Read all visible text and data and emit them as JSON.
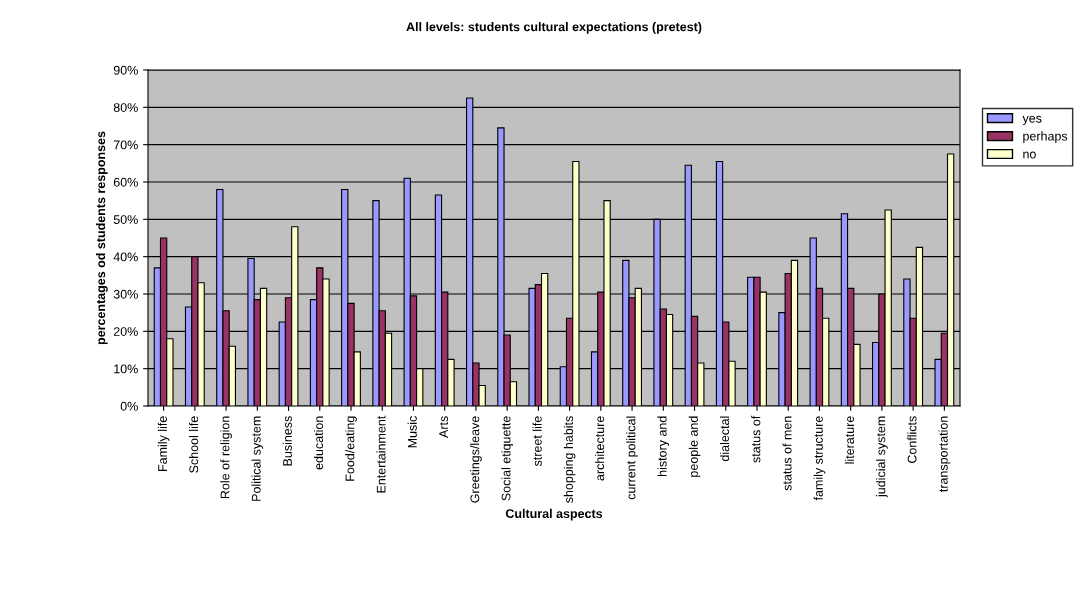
{
  "chart_data": {
    "type": "bar",
    "title": "All levels: students cultural expectations (pretest)",
    "xlabel": "Cultural aspects",
    "ylabel": "percentages od students responses",
    "categories": [
      "Family life",
      "School life",
      "Role of religion",
      "Political system",
      "Business",
      "education",
      "Food/eating",
      "Entertainment",
      "Music",
      "Arts",
      "Greetings/leave",
      "Social etiquette",
      "street life",
      "shopping habits",
      "architecture",
      "current political",
      "history and",
      "people and",
      "dialectal",
      "status of",
      "status of men",
      "family structure",
      "literature",
      "judicial system",
      "Conflicts",
      "transportation"
    ],
    "series": [
      {
        "name": "yes",
        "color": "#9999ff",
        "values": [
          37,
          26.5,
          58,
          39.5,
          22.5,
          28.5,
          58,
          55,
          61,
          56.5,
          82.5,
          74.5,
          31.5,
          10.5,
          14.5,
          39,
          50,
          64.5,
          65.5,
          34.5,
          25,
          45,
          51.5,
          17,
          34,
          12.5
        ]
      },
      {
        "name": "perhaps",
        "color": "#993366",
        "values": [
          45,
          40,
          25.5,
          28.5,
          29,
          37,
          27.5,
          25.5,
          29.5,
          30.5,
          11.5,
          19,
          32.5,
          23.5,
          30.5,
          29,
          26,
          24,
          22.5,
          34.5,
          35.5,
          31.5,
          31.5,
          30,
          23.5,
          19.5
        ]
      },
      {
        "name": "no",
        "color": "#ffffcc",
        "values": [
          18,
          33,
          16,
          31.5,
          48,
          34,
          14.5,
          19.5,
          10,
          12.5,
          5.5,
          6.5,
          35.5,
          65.5,
          55,
          31.5,
          24.5,
          11.5,
          12,
          30.5,
          39,
          23.5,
          16.5,
          52.5,
          42.5,
          67.5
        ]
      }
    ],
    "ylim": [
      0,
      90
    ],
    "yticks": [
      {
        "value": 0,
        "label": "0%"
      },
      {
        "value": 10,
        "label": "10%"
      },
      {
        "value": 20,
        "label": "20%"
      },
      {
        "value": 30,
        "label": "30%"
      },
      {
        "value": 40,
        "label": "40%"
      },
      {
        "value": 50,
        "label": "50%"
      },
      {
        "value": 60,
        "label": "60%"
      },
      {
        "value": 70,
        "label": "70%"
      },
      {
        "value": 80,
        "label": "80%"
      },
      {
        "value": 90,
        "label": "90%"
      }
    ],
    "grid": "y",
    "legend": "right"
  }
}
